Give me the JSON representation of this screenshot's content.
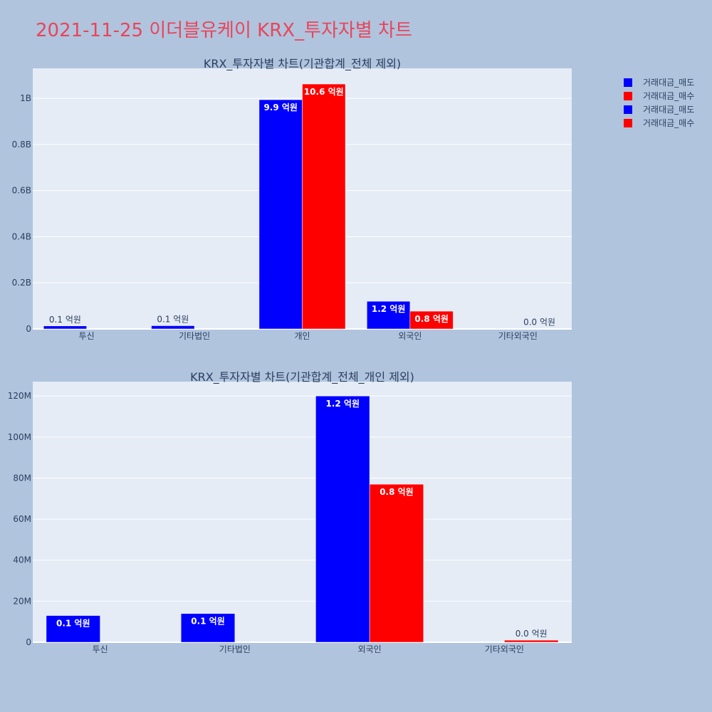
{
  "page": {
    "title": "2021-11-25 이더블유케이 KRX_투자자별 차트",
    "title_color": "#e8455a",
    "background": "#b0c4de",
    "plot_background": "#e5ecf6"
  },
  "legend": {
    "items": [
      {
        "label": "거래대금_매도",
        "color": "#0000ff"
      },
      {
        "label": "거래대금_매수",
        "color": "#ff0000"
      },
      {
        "label": "거래대금_매도",
        "color": "#0000ff"
      },
      {
        "label": "거래대금_매수",
        "color": "#ff0000"
      }
    ]
  },
  "chart_data": [
    {
      "type": "bar",
      "title": "KRX_투자자별 차트(기관합계_전체 제외)",
      "categories": [
        "투신",
        "기타법인",
        "개인",
        "외국인",
        "기타외국인"
      ],
      "series": [
        {
          "name": "거래대금_매도",
          "color": "#0000ff",
          "values": [
            13000000,
            14000000,
            994000000,
            120000000,
            0
          ],
          "labels": [
            "0.1 억원",
            "0.1 억원",
            "9.9 억원",
            "1.2 억원",
            ""
          ]
        },
        {
          "name": "거래대금_매수",
          "color": "#ff0000",
          "values": [
            0,
            0,
            1062000000,
            77000000,
            1000000
          ],
          "labels": [
            "",
            "",
            "10.6 억원",
            "0.8 억원",
            "0.0 억원"
          ]
        }
      ],
      "ylim": [
        0,
        1130000000
      ],
      "yticks": [
        0,
        200000000,
        400000000,
        600000000,
        800000000,
        1000000000
      ],
      "yticklabels": [
        "0",
        "0.2B",
        "0.4B",
        "0.6B",
        "0.8B",
        "1B"
      ],
      "grid": true
    },
    {
      "type": "bar",
      "title": "KRX_투자자별 차트(기관합계_전체_개인 제외)",
      "categories": [
        "투신",
        "기타법인",
        "외국인",
        "기타외국인"
      ],
      "series": [
        {
          "name": "거래대금_매도",
          "color": "#0000ff",
          "values": [
            13000000,
            14000000,
            120000000,
            0
          ],
          "labels": [
            "0.1 억원",
            "0.1 억원",
            "1.2 억원",
            ""
          ]
        },
        {
          "name": "거래대금_매수",
          "color": "#ff0000",
          "values": [
            0,
            0,
            77000000,
            1000000
          ],
          "labels": [
            "",
            "",
            "0.8 억원",
            "0.0 억원"
          ]
        }
      ],
      "ylim": [
        0,
        127000000
      ],
      "yticks": [
        0,
        20000000,
        40000000,
        60000000,
        80000000,
        100000000,
        120000000
      ],
      "yticklabels": [
        "0",
        "20M",
        "40M",
        "60M",
        "80M",
        "100M",
        "120M"
      ],
      "grid": true
    }
  ]
}
